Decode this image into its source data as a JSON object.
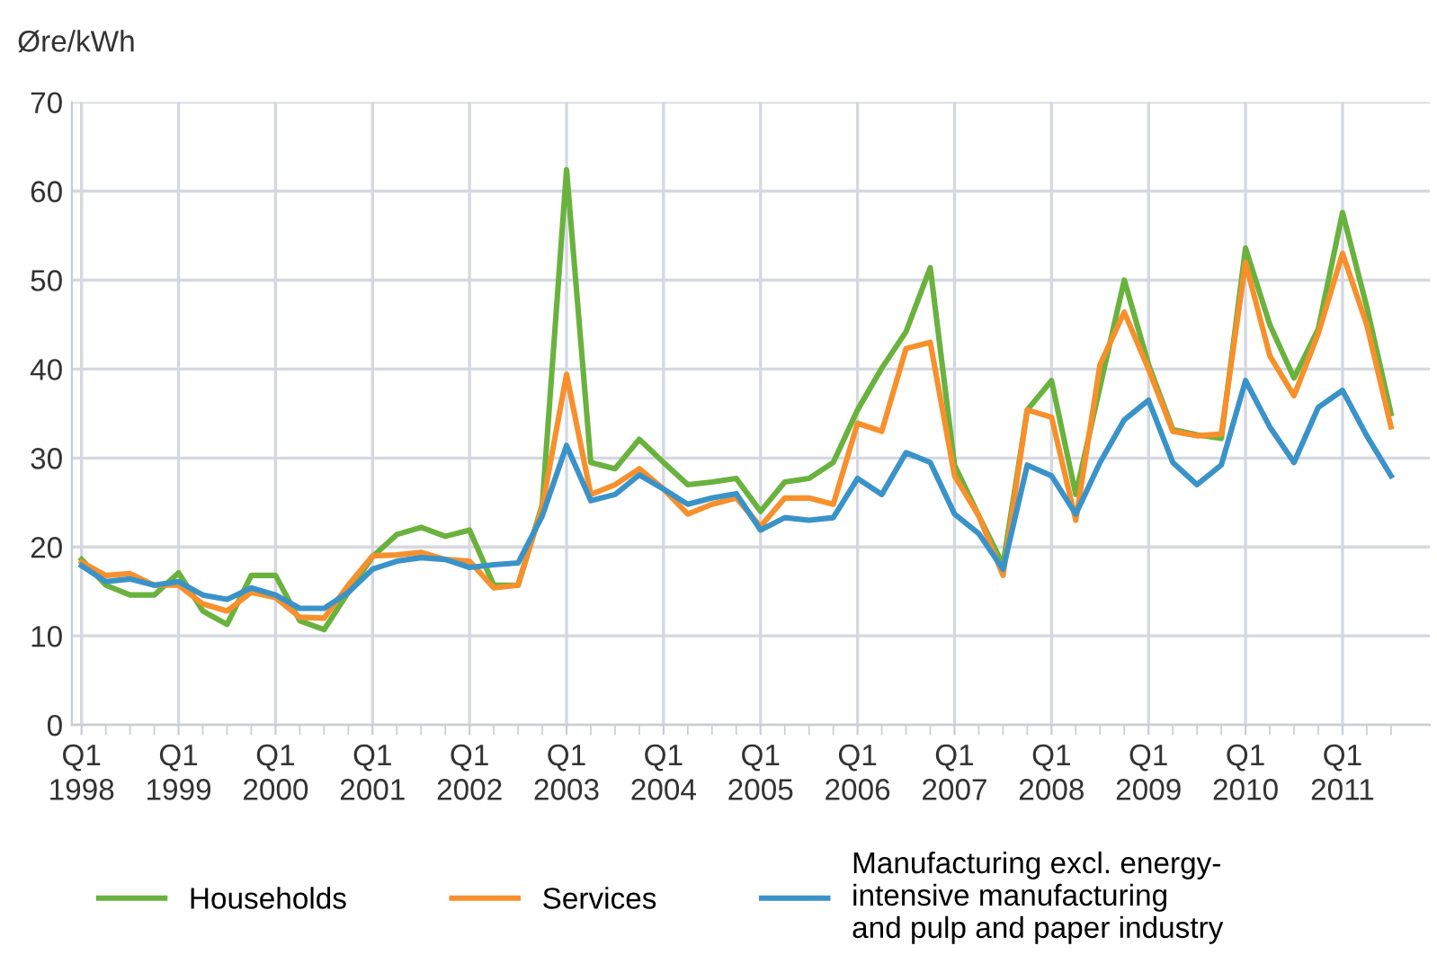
{
  "chart_data": {
    "type": "line",
    "ylabel": "Øre/kWh",
    "categories": [
      "Q1\n1998",
      null,
      null,
      null,
      "Q1\n1999",
      null,
      null,
      null,
      "Q1\n2000",
      null,
      null,
      null,
      "Q1\n2001",
      null,
      null,
      null,
      "Q1\n2002",
      null,
      null,
      null,
      "Q1\n2003",
      null,
      null,
      null,
      "Q1\n2004",
      null,
      null,
      null,
      "Q1\n2005",
      null,
      null,
      null,
      "Q1\n2006",
      null,
      null,
      null,
      "Q1\n2007",
      null,
      null,
      null,
      "Q1\n2008",
      null,
      null,
      null,
      "Q1\n2009",
      null,
      null,
      null,
      "Q1\n2010",
      null,
      null,
      null,
      "Q1\n2011",
      null,
      null
    ],
    "series": [
      {
        "name": "Households",
        "color": "#6ab23e",
        "values": [
          18.6,
          15.7,
          14.6,
          14.6,
          17.1,
          12.8,
          11.3,
          16.8,
          16.8,
          11.7,
          10.7,
          14.9,
          18.9,
          21.4,
          22.2,
          21.2,
          21.9,
          15.7,
          15.7,
          24.8,
          62.4,
          29.5,
          28.8,
          32.1,
          29.5,
          27.0,
          27.3,
          27.7,
          24.0,
          27.3,
          27.7,
          29.5,
          35.4,
          40.1,
          44.2,
          51.4,
          29.2,
          23.5,
          18.0,
          35.4,
          38.7,
          25.9,
          38.0,
          50.0,
          40.5,
          33.2,
          32.6,
          32.2,
          53.6,
          45.0,
          39.0,
          44.5,
          57.6,
          47.0,
          35.0
        ]
      },
      {
        "name": "Services",
        "color": "#f7902c",
        "values": [
          18.3,
          16.8,
          17.0,
          15.7,
          15.7,
          13.6,
          12.8,
          14.9,
          14.3,
          12.1,
          12.0,
          15.7,
          19.0,
          19.1,
          19.4,
          18.6,
          18.4,
          15.4,
          15.7,
          24.5,
          39.4,
          25.9,
          27.0,
          28.8,
          26.5,
          23.7,
          24.8,
          25.5,
          22.3,
          25.5,
          25.5,
          24.8,
          33.9,
          33.0,
          42.3,
          43.0,
          28.0,
          23.5,
          16.8,
          35.4,
          34.6,
          23.0,
          40.5,
          46.4,
          40.0,
          33.0,
          32.5,
          32.7,
          52.0,
          41.5,
          37.0,
          44.0,
          53.0,
          45.0,
          33.5
        ]
      },
      {
        "name": "Manufacturing excl. energy-\nintensive manufacturing\nand pulp and paper industry",
        "color": "#3a93c8",
        "values": [
          17.9,
          16.1,
          16.4,
          15.7,
          16.1,
          14.6,
          14.1,
          15.4,
          14.6,
          13.1,
          13.1,
          14.9,
          17.5,
          18.4,
          18.8,
          18.6,
          17.7,
          18.0,
          18.2,
          23.5,
          31.4,
          25.2,
          25.9,
          28.1,
          26.5,
          24.8,
          25.5,
          26.0,
          21.9,
          23.3,
          23.0,
          23.3,
          27.7,
          25.9,
          30.6,
          29.5,
          23.7,
          21.5,
          17.5,
          29.2,
          28.0,
          23.7,
          29.5,
          34.3,
          36.5,
          29.5,
          27.0,
          29.2,
          38.7,
          33.5,
          29.5,
          35.7,
          37.6,
          32.5,
          28.0
        ]
      }
    ],
    "ylim": [
      0,
      70
    ],
    "yticks": [
      0,
      10,
      20,
      30,
      40,
      50,
      60,
      70
    ],
    "grid": true,
    "legend": "bottom",
    "marker": "none",
    "line_style": "solid"
  }
}
